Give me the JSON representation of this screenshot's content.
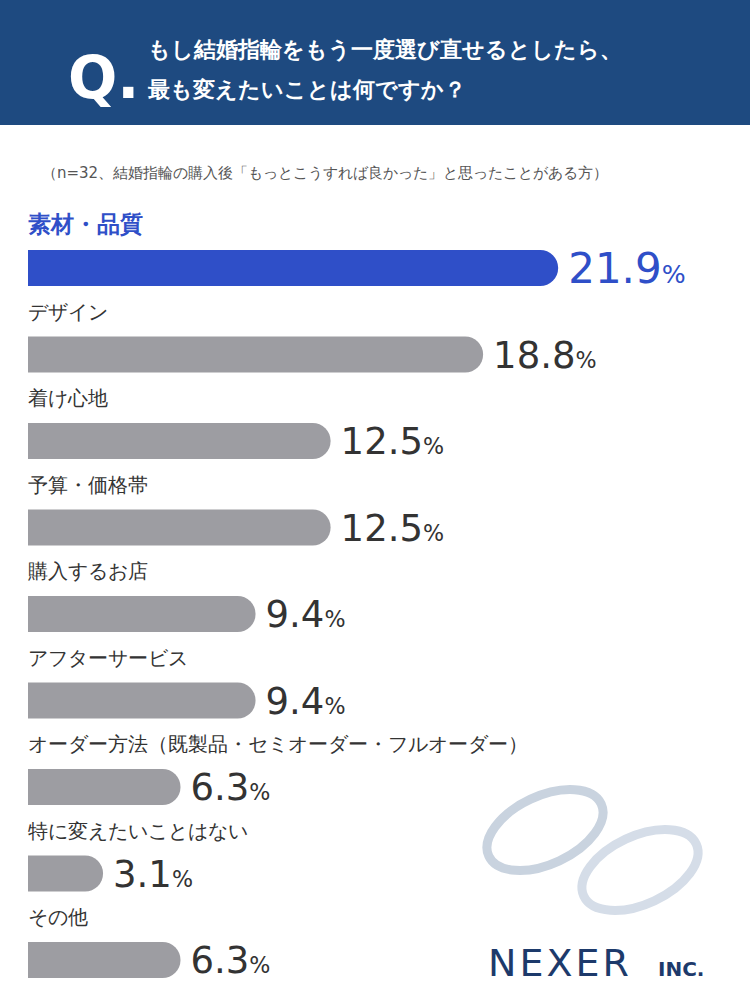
{
  "chart_data": {
    "type": "bar",
    "orientation": "horizontal",
    "title_prefix": "Q.",
    "title": [
      "もし結婚指輪をもう一度選び直せるとしたら、",
      "最も変えたいことは何ですか？"
    ],
    "subtitle": "（n=32、結婚指輪の購入後「もっとこうすれば良かった」と思ったことがある方）",
    "categories": [
      "素材・品質",
      "デザイン",
      "着け心地",
      "予算・価格帯",
      "購入するお店",
      "アフターサービス",
      "オーダー方法（既製品・セミオーダー・フルオーダー）",
      "特に変えたいことはない",
      "その他"
    ],
    "values": [
      21.9,
      18.8,
      12.5,
      12.5,
      9.4,
      9.4,
      6.3,
      3.1,
      6.3
    ],
    "value_labels": [
      "21.9%",
      "18.8%",
      "12.5%",
      "12.5%",
      "9.4%",
      "9.4%",
      "6.3%",
      "3.1%",
      "6.3%"
    ],
    "colors": [
      "#2f4fc8",
      "#9d9da2",
      "#9d9da2",
      "#9d9da2",
      "#9d9da2",
      "#9d9da2",
      "#9d9da2",
      "#9d9da2",
      "#9d9da2"
    ],
    "xlim": [
      0,
      24
    ],
    "data_labels": true,
    "tick_labels": false,
    "grid": false,
    "annotations": [
      "NEXER",
      "INC."
    ]
  }
}
